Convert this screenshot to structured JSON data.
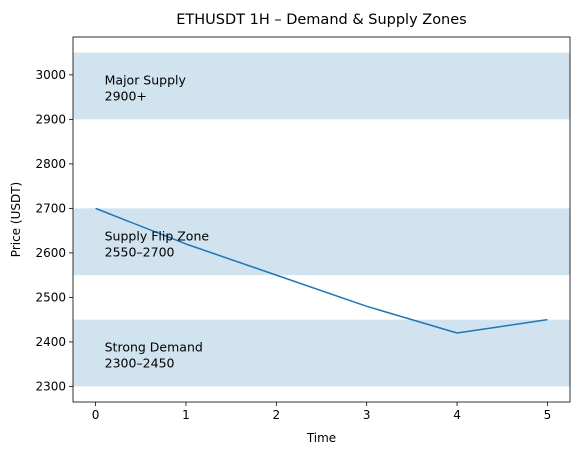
{
  "chart_data": {
    "type": "line",
    "title": "ETHUSDT 1H – Demand & Supply Zones",
    "xlabel": "Time",
    "ylabel": "Price (USDT)",
    "xlim": [
      -0.25,
      5.25
    ],
    "ylim": [
      2265,
      3085
    ],
    "xticks": [
      0,
      1,
      2,
      3,
      4,
      5
    ],
    "yticks": [
      2300,
      2400,
      2500,
      2600,
      2700,
      2800,
      2900,
      3000
    ],
    "grid": false,
    "series": [
      {
        "x": [
          0,
          1,
          2,
          3,
          4,
          5
        ],
        "values": [
          2700,
          2620,
          2550,
          2480,
          2420,
          2450
        ],
        "color": "#1f77b4"
      }
    ],
    "zones": [
      {
        "low": 2900,
        "high": 3050,
        "label_line1": "Major Supply",
        "label_line2": "2900+",
        "label_x": 0.1,
        "label_y": 2975
      },
      {
        "low": 2550,
        "high": 2700,
        "label_line1": "Supply Flip Zone",
        "label_line2": "2550–2700",
        "label_x": 0.1,
        "label_y": 2625
      },
      {
        "low": 2300,
        "high": 2450,
        "label_line1": "Strong Demand",
        "label_line2": "2300–2450",
        "label_x": 0.1,
        "label_y": 2375
      }
    ],
    "zone_color": "#d2e3f0"
  }
}
